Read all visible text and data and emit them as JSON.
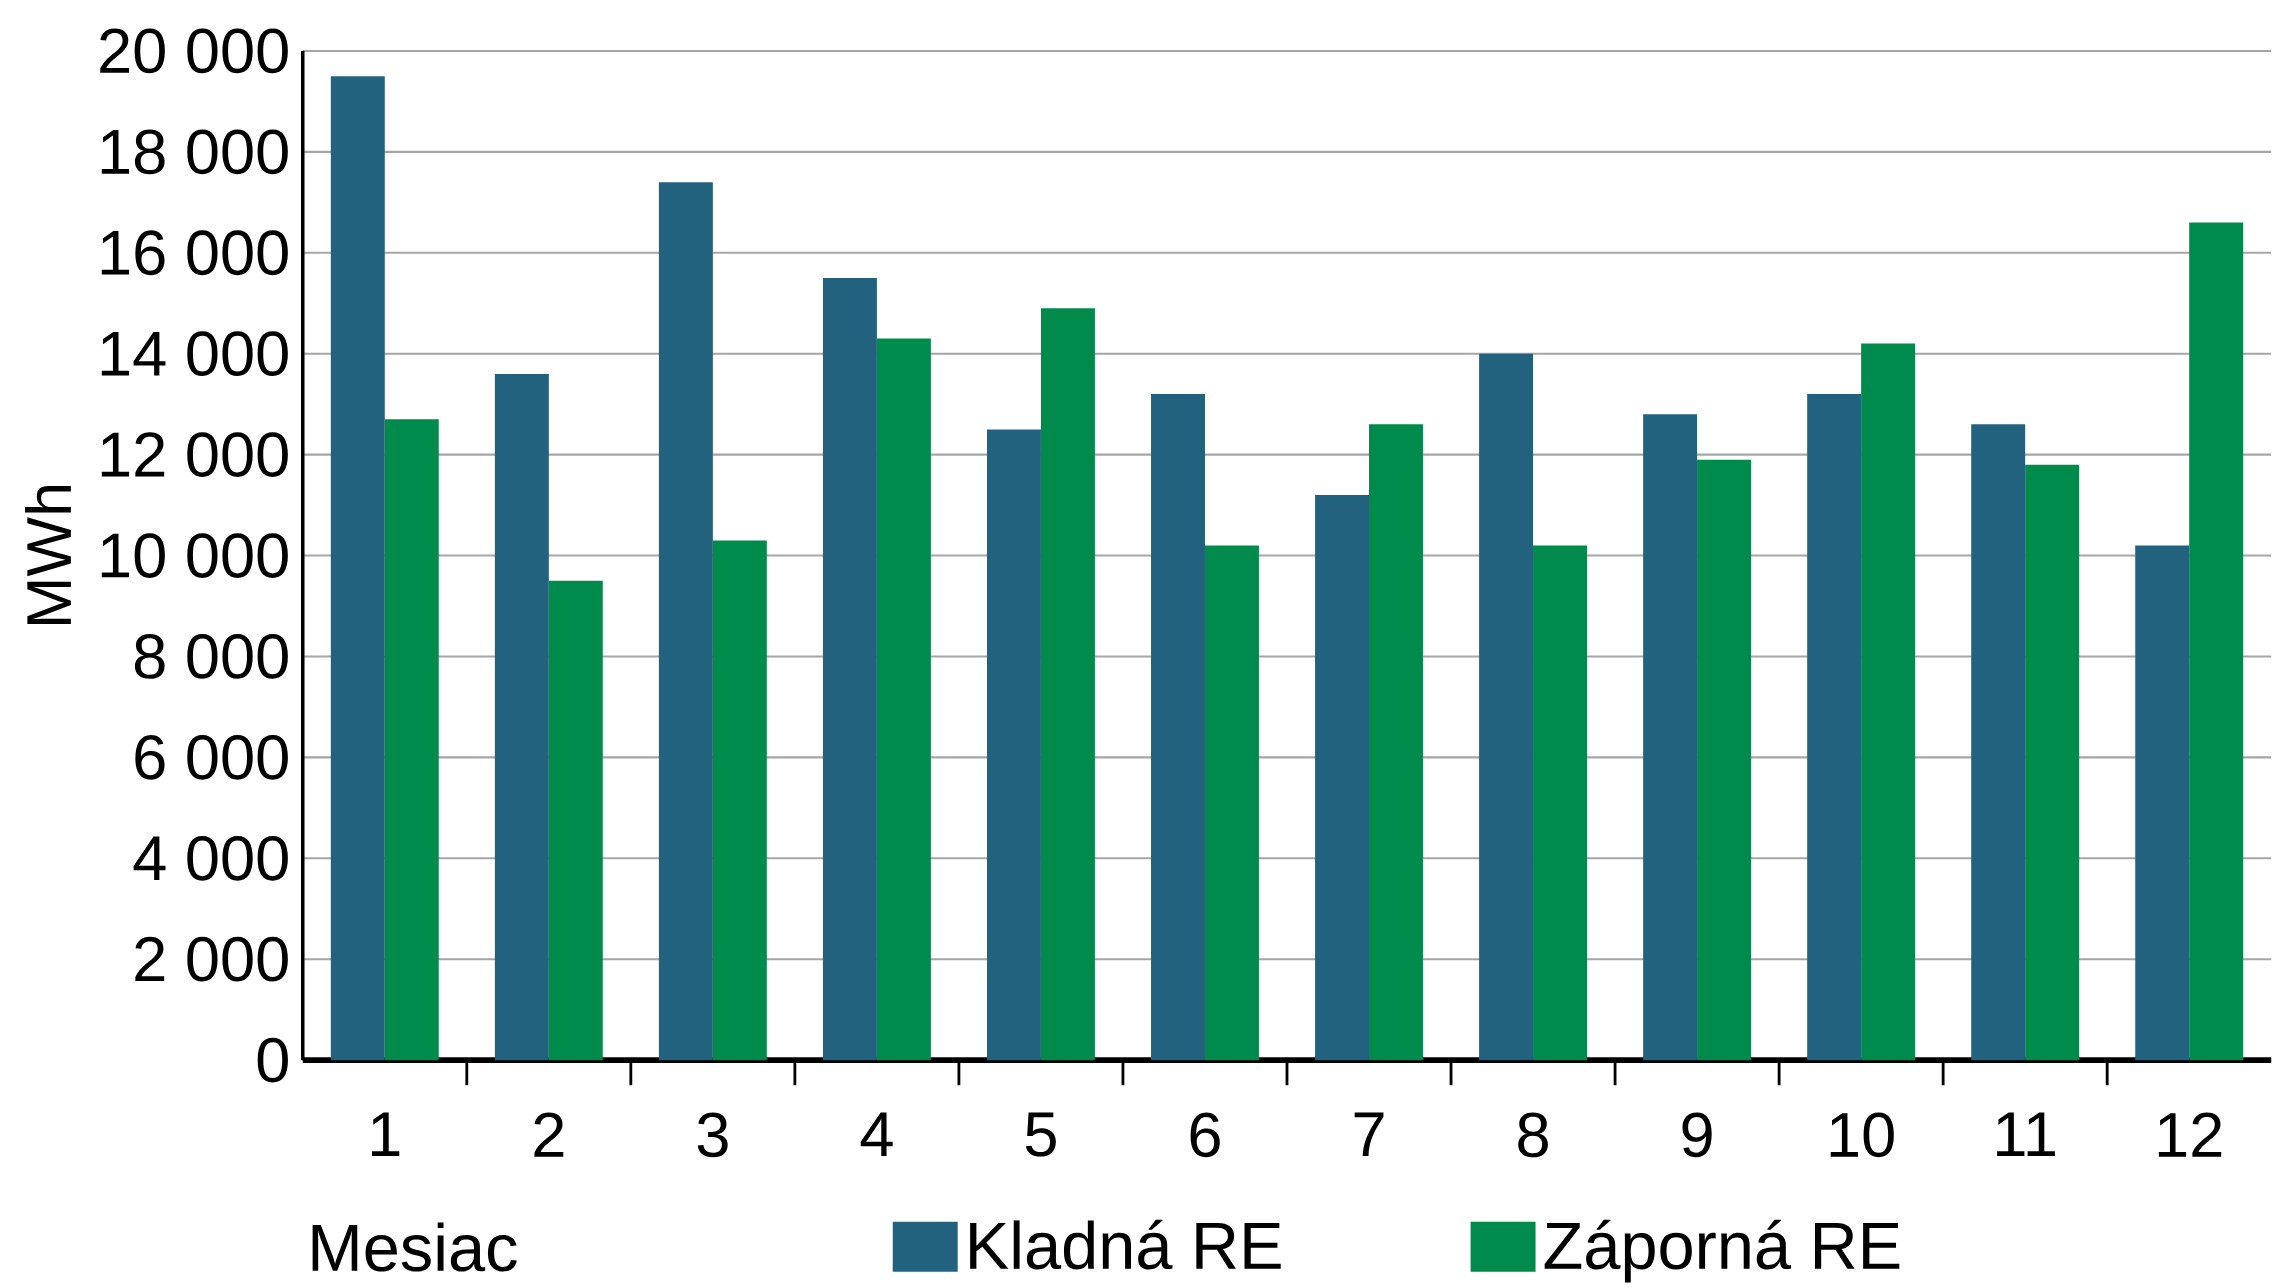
{
  "chart_data": {
    "type": "bar",
    "xlabel": "Mesiac",
    "ylabel": "MWh",
    "categories": [
      "1",
      "2",
      "3",
      "4",
      "5",
      "6",
      "7",
      "8",
      "9",
      "10",
      "11",
      "12"
    ],
    "series": [
      {
        "name": "Kladná RE",
        "color": "#23627f",
        "values": [
          19500,
          13600,
          17400,
          15500,
          12500,
          13200,
          11200,
          14000,
          12800,
          13200,
          12600,
          10200
        ]
      },
      {
        "name": "Záporná RE",
        "color": "#008a4c",
        "values": [
          12700,
          9500,
          10300,
          14300,
          14900,
          10200,
          12600,
          10200,
          11900,
          14200,
          11800,
          16600
        ]
      }
    ],
    "ylim": [
      0,
      20000
    ],
    "yticks": [
      0,
      {
        "value": 2000,
        "label": "2 000"
      },
      {
        "value": 4000,
        "label": "4 000"
      },
      {
        "value": 6000,
        "label": "6 000"
      },
      {
        "value": 8000,
        "label": "8 000"
      },
      {
        "value": 10000,
        "label": "10 000"
      },
      {
        "value": 12000,
        "label": "12 000"
      },
      {
        "value": 14000,
        "label": "14 000"
      },
      {
        "value": 16000,
        "label": "16 000"
      },
      {
        "value": 18000,
        "label": "18 000"
      },
      {
        "value": 20000,
        "label": "20 000"
      }
    ],
    "grid": "y",
    "legend": "bottom"
  }
}
